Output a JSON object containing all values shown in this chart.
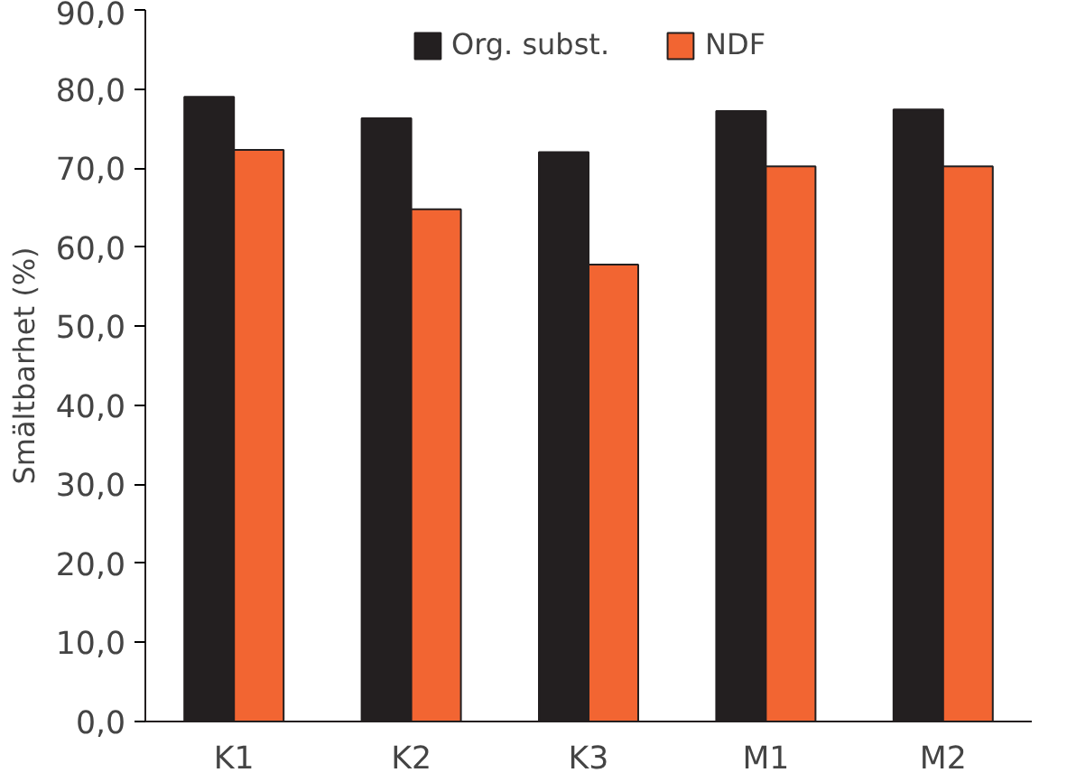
{
  "chart_data": {
    "type": "bar",
    "ylabel": "Smältbarhet (%)",
    "categories": [
      "K1",
      "K2",
      "K3",
      "M1",
      "M2"
    ],
    "series": [
      {
        "name": "Org. subst.",
        "color": "#231f20",
        "values": [
          79.0,
          76.3,
          72.0,
          77.2,
          77.4
        ]
      },
      {
        "name": "NDF",
        "color": "#f26532",
        "values": [
          72.3,
          64.8,
          57.8,
          70.2,
          70.2
        ]
      }
    ],
    "ylim": [
      0,
      90
    ],
    "yticks": [
      {
        "value": 0,
        "label": "0,0"
      },
      {
        "value": 10,
        "label": "10,0"
      },
      {
        "value": 20,
        "label": "20,0"
      },
      {
        "value": 30,
        "label": "30,0"
      },
      {
        "value": 40,
        "label": "40,0"
      },
      {
        "value": 50,
        "label": "50,0"
      },
      {
        "value": 60,
        "label": "60,0"
      },
      {
        "value": 70,
        "label": "70,0"
      },
      {
        "value": 80,
        "label": "80,0"
      },
      {
        "value": 90,
        "label": "90,0"
      }
    ],
    "grid": false,
    "legend": "top"
  }
}
